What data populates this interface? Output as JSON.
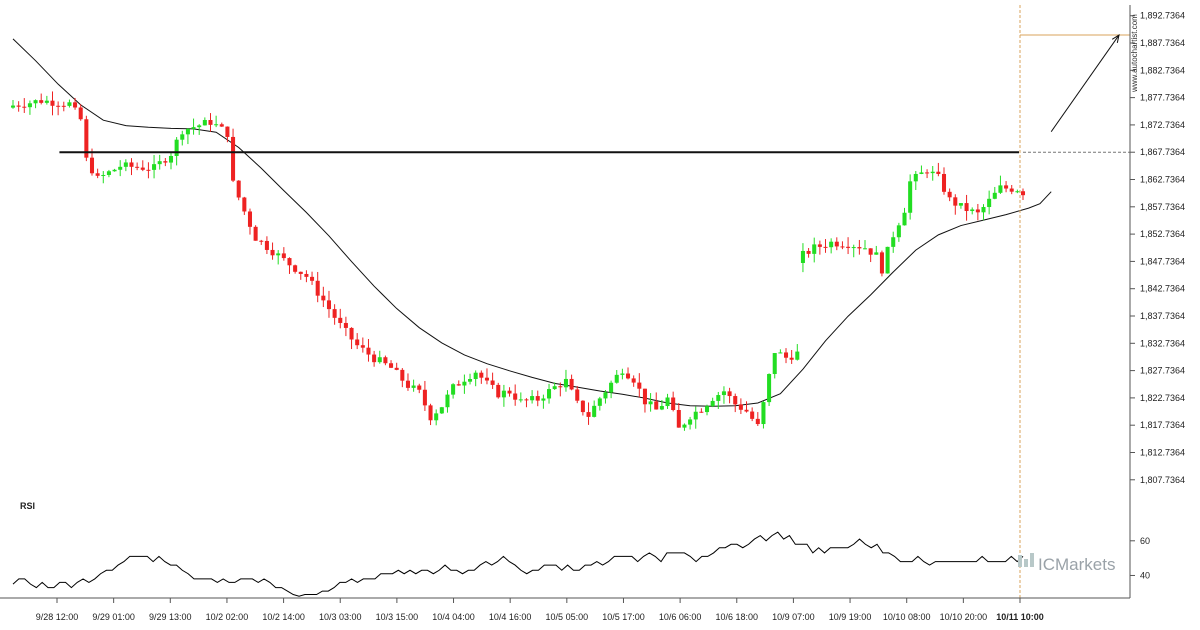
{
  "watermark": "www.autochartist.com",
  "logo": "ICMarkets",
  "rsi_panel": {
    "label": "RSI",
    "ticks": [
      "60",
      "40"
    ]
  },
  "chart_data": [
    {
      "type": "candlestick",
      "title": "",
      "y_tick_labels": [
        "1,892.7364",
        "1,887.7364",
        "1,882.7364",
        "1,877.7364",
        "1,872.7364",
        "1,867.7364",
        "1,862.7364",
        "1,857.7364",
        "1,852.7364",
        "1,847.7364",
        "1,842.7364",
        "1,837.7364",
        "1,832.7364",
        "1,827.7364",
        "1,822.7364",
        "1,817.7364",
        "1,812.7364",
        "1,807.7364"
      ],
      "ylim": [
        1805.5,
        1894.7
      ],
      "x_tick_labels": [
        "9/28 12:00",
        "9/29 01:00",
        "9/29 13:00",
        "10/2 02:00",
        "10/2 14:00",
        "10/3 03:00",
        "10/3 15:00",
        "10/4 04:00",
        "10/4 16:00",
        "10/5 05:00",
        "10/5 17:00",
        "10/6 06:00",
        "10/6 18:00",
        "10/9 07:00",
        "10/9 19:00",
        "10/10 08:00",
        "10/10 20:00",
        "10/11 10:00"
      ],
      "highlight_x_label": "10/11 10:00",
      "candle_count": 180,
      "colors": {
        "up": "#22dd22",
        "down": "#ee2222",
        "moving_average": "#111111",
        "resistance": "#111111",
        "target": "#d9a35b",
        "arrow": "#111111"
      },
      "close_path": [
        [
          0,
          1876.3
        ],
        [
          5,
          1877.2
        ],
        [
          10,
          1876.6
        ],
        [
          12,
          1873.7
        ],
        [
          13,
          1866.3
        ],
        [
          15,
          1862.8
        ],
        [
          19,
          1865.2
        ],
        [
          25,
          1864.8
        ],
        [
          28,
          1867.5
        ],
        [
          30,
          1871.8
        ],
        [
          35,
          1873.3
        ],
        [
          38,
          1871.2
        ],
        [
          39,
          1862.0
        ],
        [
          41,
          1856.9
        ],
        [
          43,
          1852.1
        ],
        [
          48,
          1848.0
        ],
        [
          52,
          1845.0
        ],
        [
          55,
          1840.6
        ],
        [
          58,
          1836.0
        ],
        [
          61,
          1832.3
        ],
        [
          64,
          1830.0
        ],
        [
          67,
          1828.2
        ],
        [
          70,
          1825.0
        ],
        [
          72,
          1823.7
        ],
        [
          74,
          1819.3
        ],
        [
          76,
          1821.3
        ],
        [
          78,
          1824.6
        ],
        [
          80,
          1826.3
        ],
        [
          82,
          1827.6
        ],
        [
          84,
          1825.3
        ],
        [
          86,
          1823.5
        ],
        [
          88,
          1823.9
        ],
        [
          90,
          1822.0
        ],
        [
          93,
          1822.5
        ],
        [
          96,
          1824.7
        ],
        [
          98,
          1825.8
        ],
        [
          100,
          1821.6
        ],
        [
          102,
          1819.5
        ],
        [
          104,
          1822.7
        ],
        [
          106,
          1825.4
        ],
        [
          108,
          1828.0
        ],
        [
          110,
          1826.2
        ],
        [
          112,
          1822.1
        ],
        [
          114,
          1820.5
        ],
        [
          116,
          1822.6
        ],
        [
          118,
          1817.0
        ],
        [
          120,
          1819.5
        ],
        [
          122,
          1820.8
        ],
        [
          124,
          1822.8
        ],
        [
          126,
          1824.0
        ],
        [
          128,
          1821.6
        ],
        [
          130,
          1820.3
        ],
        [
          132,
          1817.5
        ],
        [
          133,
          1821.6
        ],
        [
          134,
          1826.7
        ],
        [
          135,
          1831.3
        ],
        [
          137,
          1830.1
        ],
        [
          139,
          1830.9
        ],
        [
          140,
          1848.9
        ],
        [
          142,
          1850.2
        ],
        [
          145,
          1851.2
        ],
        [
          148,
          1851.0
        ],
        [
          151,
          1850.3
        ],
        [
          153,
          1848.8
        ],
        [
          154,
          1846.3
        ],
        [
          155,
          1849.6
        ],
        [
          156,
          1852.6
        ],
        [
          158,
          1857.3
        ],
        [
          159,
          1862.3
        ],
        [
          162,
          1864.5
        ],
        [
          164,
          1863.0
        ],
        [
          166,
          1859.0
        ],
        [
          168,
          1857.7
        ],
        [
          171,
          1856.4
        ],
        [
          173,
          1858.8
        ],
        [
          175,
          1861.2
        ],
        [
          178,
          1861.0
        ],
        [
          180,
          1859.8
        ],
        [
          181,
          1862.0
        ],
        [
          182,
          1867.0
        ],
        [
          183,
          1870.5
        ],
        [
          184,
          1873.5
        ]
      ],
      "moving_average": [
        [
          0,
          1888.5
        ],
        [
          4,
          1884.5
        ],
        [
          8,
          1880.2
        ],
        [
          12,
          1876.4
        ],
        [
          16,
          1873.6
        ],
        [
          20,
          1872.6
        ],
        [
          24,
          1872.3
        ],
        [
          28,
          1872.1
        ],
        [
          32,
          1872.0
        ],
        [
          36,
          1871.4
        ],
        [
          40,
          1868.6
        ],
        [
          44,
          1864.8
        ],
        [
          48,
          1860.7
        ],
        [
          52,
          1856.7
        ],
        [
          56,
          1852.4
        ],
        [
          60,
          1847.7
        ],
        [
          64,
          1843.2
        ],
        [
          68,
          1839.1
        ],
        [
          72,
          1835.6
        ],
        [
          76,
          1832.8
        ],
        [
          80,
          1830.6
        ],
        [
          84,
          1829.0
        ],
        [
          88,
          1827.7
        ],
        [
          92,
          1826.5
        ],
        [
          96,
          1825.4
        ],
        [
          100,
          1824.7
        ],
        [
          104,
          1824.0
        ],
        [
          108,
          1823.4
        ],
        [
          112,
          1822.7
        ],
        [
          116,
          1821.8
        ],
        [
          120,
          1821.3
        ],
        [
          124,
          1821.2
        ],
        [
          128,
          1821.3
        ],
        [
          132,
          1821.8
        ],
        [
          136,
          1823.5
        ],
        [
          140,
          1828.0
        ],
        [
          144,
          1833.2
        ],
        [
          148,
          1837.7
        ],
        [
          152,
          1841.6
        ],
        [
          156,
          1845.8
        ],
        [
          160,
          1849.8
        ],
        [
          164,
          1852.6
        ],
        [
          168,
          1854.3
        ],
        [
          172,
          1855.3
        ],
        [
          176,
          1856.3
        ],
        [
          180,
          1857.5
        ],
        [
          182,
          1858.3
        ],
        [
          184,
          1860.5
        ]
      ],
      "resistance_level": 1867.7364,
      "resistance_start_index": 10,
      "target_level": 1889.2,
      "forecast_arrow": {
        "from": [
          184,
          1871.5
        ],
        "to": [
          1889.2
        ]
      }
    },
    {
      "type": "line",
      "series_name": "RSI",
      "y_ticks": [
        60,
        40
      ],
      "ylim": [
        27,
        72
      ],
      "values": [
        35,
        38,
        38,
        35,
        33,
        36,
        33,
        33,
        36,
        36,
        33,
        36,
        38,
        36,
        38,
        41,
        43,
        43,
        46,
        48,
        51,
        51,
        51,
        51,
        48,
        51,
        48,
        46,
        46,
        43,
        41,
        38,
        38,
        38,
        38,
        36,
        38,
        36,
        36,
        38,
        38,
        38,
        36,
        38,
        36,
        33,
        33,
        31,
        29,
        28,
        29,
        29,
        29,
        31,
        31,
        33,
        36,
        36,
        38,
        36,
        38,
        38,
        38,
        41,
        41,
        41,
        43,
        41,
        43,
        41,
        43,
        43,
        41,
        43,
        46,
        43,
        43,
        41,
        43,
        43,
        46,
        48,
        46,
        48,
        51,
        48,
        46,
        43,
        41,
        43,
        43,
        46,
        46,
        46,
        43,
        46,
        43,
        43,
        46,
        46,
        48,
        46,
        48,
        51,
        51,
        51,
        51,
        48,
        51,
        53,
        51,
        48,
        53,
        53,
        53,
        53,
        51,
        48,
        51,
        51,
        53,
        56,
        56,
        58,
        58,
        56,
        58,
        61,
        63,
        60,
        63,
        65,
        61,
        63,
        58,
        58,
        58,
        53,
        56,
        53,
        56,
        56,
        56,
        56,
        58,
        61,
        58,
        56,
        58,
        53,
        53,
        51,
        48,
        48,
        48,
        51,
        48,
        46,
        48,
        48,
        48,
        48,
        48,
        48,
        48,
        48,
        51,
        48,
        48,
        48,
        48,
        51,
        48,
        51
      ]
    }
  ]
}
